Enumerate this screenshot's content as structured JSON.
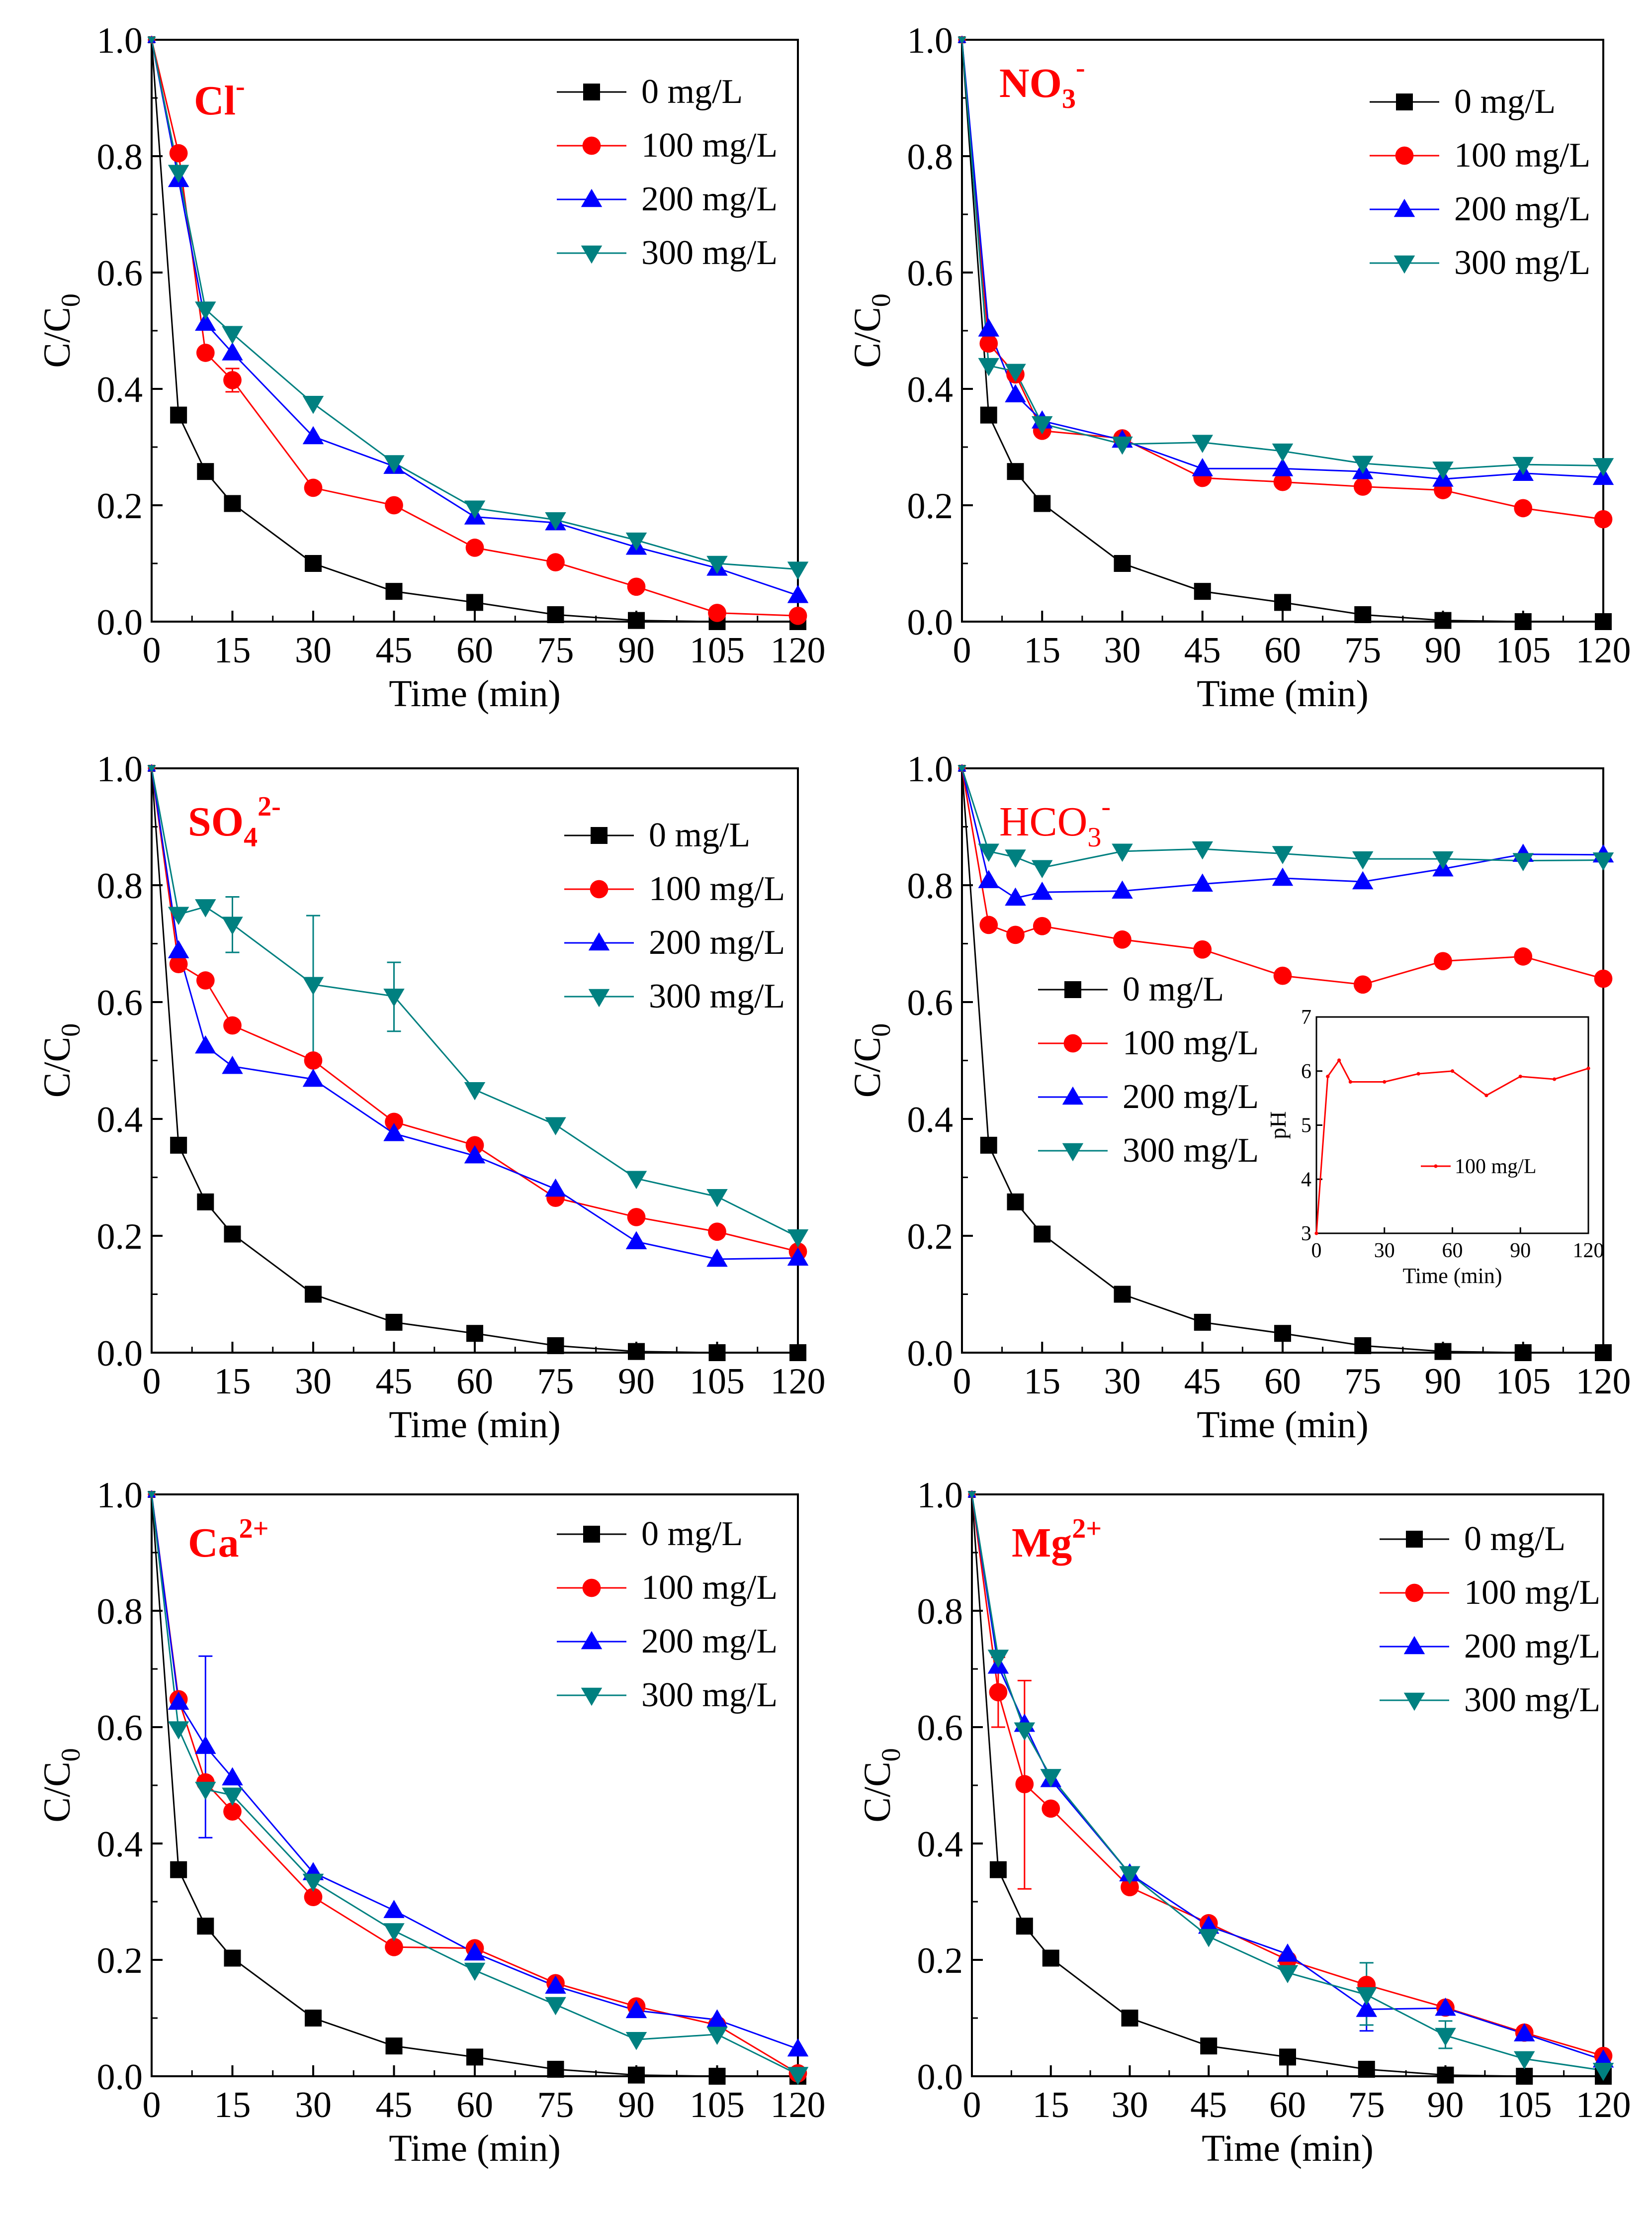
{
  "chart_data": [
    {
      "type": "line",
      "ion_label": {
        "base": "Cl",
        "sup": "-",
        "sub": "",
        "weight": "bold"
      },
      "xlabel": "Time (min)",
      "ylabel_base": "C/C",
      "ylabel_sub": "0",
      "xlim": [
        0,
        120
      ],
      "ylim": [
        0,
        1
      ],
      "xticks": [
        0,
        15,
        30,
        45,
        60,
        75,
        90,
        105,
        120
      ],
      "xtick_labels": [
        "0",
        "15",
        "30",
        "45",
        "60",
        "75",
        "90",
        "105",
        "120"
      ],
      "yticks": [
        0,
        0.2,
        0.4,
        0.6,
        0.8,
        1.0
      ],
      "ytick_labels": [
        "0.0",
        "0.2",
        "0.4",
        "0.6",
        "0.8",
        "1.0"
      ],
      "legend_position": "top-right",
      "x": [
        0,
        5,
        10,
        15,
        30,
        45,
        60,
        75,
        90,
        105,
        120
      ],
      "series": [
        {
          "name": "0 mg/L",
          "marker": "square",
          "color": "#000000",
          "values": [
            1.0,
            0.355,
            0.258,
            0.203,
            0.1,
            0.052,
            0.033,
            0.012,
            0.002,
            0.0,
            0.0
          ]
        },
        {
          "name": "100 mg/L",
          "marker": "circle",
          "color": "#ff0000",
          "values": [
            1.0,
            0.805,
            0.462,
            0.415,
            0.23,
            0.2,
            0.127,
            0.102,
            0.06,
            0.015,
            0.01
          ]
        },
        {
          "name": "200 mg/L",
          "marker": "triangle-up",
          "color": "#0000ff",
          "values": [
            1.0,
            0.76,
            0.513,
            0.462,
            0.318,
            0.267,
            0.18,
            0.17,
            0.128,
            0.092,
            0.045
          ]
        },
        {
          "name": "300 mg/L",
          "marker": "triangle-down",
          "color": "#008080",
          "values": [
            1.0,
            0.772,
            0.537,
            0.495,
            0.375,
            0.273,
            0.195,
            0.175,
            0.14,
            0.1,
            0.09
          ]
        }
      ],
      "error_bars": [
        {
          "series": 1,
          "x": 15,
          "low": 0.395,
          "high": 0.435
        }
      ]
    },
    {
      "type": "line",
      "ion_label": {
        "base": "NO",
        "sub": "3",
        "sup": "-",
        "weight": "bold"
      },
      "xlabel": "Time (min)",
      "ylabel_base": "C/C",
      "ylabel_sub": "0",
      "xlim": [
        0,
        120
      ],
      "ylim": [
        0,
        1
      ],
      "xticks": [
        0,
        15,
        30,
        45,
        60,
        75,
        90,
        105,
        120
      ],
      "xtick_labels": [
        "0",
        "15",
        "30",
        "45",
        "60",
        "75",
        "90",
        "105",
        "120"
      ],
      "yticks": [
        0,
        0.2,
        0.4,
        0.6,
        0.8,
        1.0
      ],
      "ytick_labels": [
        "0.0",
        "0.2",
        "0.4",
        "0.6",
        "0.8",
        "1.0"
      ],
      "legend_position": "top-right",
      "x": [
        0,
        5,
        10,
        15,
        30,
        45,
        60,
        75,
        90,
        105,
        120
      ],
      "series": [
        {
          "name": "0 mg/L",
          "marker": "square",
          "color": "#000000",
          "values": [
            1.0,
            0.355,
            0.258,
            0.203,
            0.1,
            0.052,
            0.033,
            0.012,
            0.002,
            0.0,
            0.0
          ]
        },
        {
          "name": "100 mg/L",
          "marker": "circle",
          "color": "#ff0000",
          "values": [
            1.0,
            0.478,
            0.425,
            0.328,
            0.315,
            0.247,
            0.24,
            0.232,
            0.226,
            0.195,
            0.176
          ]
        },
        {
          "name": "200 mg/L",
          "marker": "triangle-up",
          "color": "#0000ff",
          "values": [
            1.0,
            0.503,
            0.39,
            0.345,
            0.312,
            0.263,
            0.263,
            0.258,
            0.245,
            0.255,
            0.248
          ]
        },
        {
          "name": "300 mg/L",
          "marker": "triangle-down",
          "color": "#008080",
          "values": [
            1.0,
            0.44,
            0.43,
            0.34,
            0.305,
            0.308,
            0.293,
            0.272,
            0.262,
            0.27,
            0.268
          ]
        }
      ],
      "error_bars": []
    },
    {
      "type": "line",
      "ion_label": {
        "base": "SO",
        "sub": "4",
        "sup": "2-",
        "weight": "bold"
      },
      "xlabel": "Time (min)",
      "ylabel_base": "C/C",
      "ylabel_sub": "0",
      "xlim": [
        0,
        120
      ],
      "ylim": [
        0,
        1
      ],
      "xticks": [
        0,
        15,
        30,
        45,
        60,
        75,
        90,
        105,
        120
      ],
      "xtick_labels": [
        "0",
        "15",
        "30",
        "45",
        "60",
        "75",
        "90",
        "105",
        "120"
      ],
      "yticks": [
        0,
        0.2,
        0.4,
        0.6,
        0.8,
        1.0
      ],
      "ytick_labels": [
        "0.0",
        "0.2",
        "0.4",
        "0.6",
        "0.8",
        "1.0"
      ],
      "legend_position": "top-right",
      "x": [
        0,
        5,
        10,
        15,
        30,
        45,
        60,
        75,
        90,
        105,
        120
      ],
      "series": [
        {
          "name": "0 mg/L",
          "marker": "square",
          "color": "#000000",
          "values": [
            1.0,
            0.355,
            0.258,
            0.203,
            0.1,
            0.052,
            0.033,
            0.012,
            0.002,
            0.0,
            0.0
          ]
        },
        {
          "name": "100 mg/L",
          "marker": "circle",
          "color": "#ff0000",
          "values": [
            1.0,
            0.665,
            0.637,
            0.56,
            0.5,
            0.395,
            0.355,
            0.265,
            0.232,
            0.207,
            0.173
          ]
        },
        {
          "name": "200 mg/L",
          "marker": "triangle-up",
          "color": "#0000ff",
          "values": [
            1.0,
            0.688,
            0.525,
            0.49,
            0.468,
            0.375,
            0.337,
            0.28,
            0.19,
            0.16,
            0.162
          ]
        },
        {
          "name": "300 mg/L",
          "marker": "triangle-down",
          "color": "#008080",
          "values": [
            1.0,
            0.75,
            0.763,
            0.733,
            0.63,
            0.61,
            0.45,
            0.39,
            0.298,
            0.267,
            0.198
          ]
        }
      ],
      "error_bars": [
        {
          "series": 3,
          "x": 15,
          "low": 0.685,
          "high": 0.78
        },
        {
          "series": 3,
          "x": 30,
          "low": 0.51,
          "high": 0.748
        },
        {
          "series": 3,
          "x": 45,
          "low": 0.55,
          "high": 0.668
        }
      ]
    },
    {
      "type": "line",
      "ion_label": {
        "base": "HCO",
        "sub": "3",
        "sup": "-",
        "weight": "normal"
      },
      "xlabel": "Time (min)",
      "ylabel_base": "C/C",
      "ylabel_sub": "0",
      "xlim": [
        0,
        120
      ],
      "ylim": [
        0,
        1
      ],
      "xticks": [
        0,
        15,
        30,
        45,
        60,
        75,
        90,
        105,
        120
      ],
      "xtick_labels": [
        "0",
        "15",
        "30",
        "45",
        "60",
        "75",
        "90",
        "105",
        "120"
      ],
      "yticks": [
        0,
        0.2,
        0.4,
        0.6,
        0.8,
        1.0
      ],
      "ytick_labels": [
        "0.0",
        "0.2",
        "0.4",
        "0.6",
        "0.8",
        "1.0"
      ],
      "legend_position": "center-left",
      "x": [
        0,
        5,
        10,
        15,
        30,
        45,
        60,
        75,
        90,
        105,
        120
      ],
      "series": [
        {
          "name": "0 mg/L",
          "marker": "square",
          "color": "#000000",
          "values": [
            1.0,
            0.355,
            0.258,
            0.203,
            0.1,
            0.052,
            0.033,
            0.012,
            0.002,
            0.0,
            0.0
          ]
        },
        {
          "name": "100 mg/L",
          "marker": "circle",
          "color": "#ff0000",
          "values": [
            1.0,
            0.732,
            0.715,
            0.73,
            0.707,
            0.69,
            0.645,
            0.63,
            0.67,
            0.678,
            0.64
          ]
        },
        {
          "name": "200 mg/L",
          "marker": "triangle-up",
          "color": "#0000ff",
          "values": [
            1.0,
            0.808,
            0.778,
            0.788,
            0.79,
            0.802,
            0.812,
            0.806,
            0.828,
            0.853,
            0.852
          ]
        },
        {
          "name": "300 mg/L",
          "marker": "triangle-down",
          "color": "#008080",
          "values": [
            1.0,
            0.858,
            0.848,
            0.83,
            0.858,
            0.862,
            0.854,
            0.845,
            0.845,
            0.842,
            0.843
          ]
        }
      ],
      "error_bars": [],
      "inset": {
        "type": "line",
        "xlabel": "Time (min)",
        "ylabel": "pH",
        "xlim": [
          0,
          120
        ],
        "ylim": [
          3,
          7
        ],
        "xticks": [
          0,
          30,
          60,
          90,
          120
        ],
        "xtick_labels": [
          "0",
          "30",
          "60",
          "90",
          "120"
        ],
        "yticks": [
          3,
          4,
          5,
          6,
          7
        ],
        "ytick_labels": [
          "3",
          "4",
          "5",
          "6",
          "7"
        ],
        "x": [
          0,
          5,
          10,
          15,
          30,
          45,
          60,
          75,
          90,
          105,
          120
        ],
        "series": [
          {
            "name": "100 mg/L",
            "marker": "dot",
            "color": "#ff0000",
            "values": [
              3.0,
              5.9,
              6.2,
              5.8,
              5.8,
              5.95,
              6.0,
              5.55,
              5.9,
              5.85,
              6.05
            ]
          }
        ]
      }
    },
    {
      "type": "line",
      "ion_label": {
        "base": "Ca",
        "sub": "",
        "sup": "2+",
        "weight": "bold"
      },
      "xlabel": "Time (min)",
      "ylabel_base": "C/C",
      "ylabel_sub": "0",
      "xlim": [
        0,
        120
      ],
      "ylim": [
        0,
        1
      ],
      "xticks": [
        0,
        15,
        30,
        45,
        60,
        75,
        90,
        105,
        120
      ],
      "xtick_labels": [
        "0",
        "15",
        "30",
        "45",
        "60",
        "75",
        "90",
        "105",
        "120"
      ],
      "yticks": [
        0,
        0.2,
        0.4,
        0.6,
        0.8,
        1.0
      ],
      "ytick_labels": [
        "0.0",
        "0.2",
        "0.4",
        "0.6",
        "0.8",
        "1.0"
      ],
      "legend_position": "top-right",
      "x": [
        0,
        5,
        10,
        15,
        30,
        45,
        60,
        75,
        90,
        105,
        120
      ],
      "series": [
        {
          "name": "0 mg/L",
          "marker": "square",
          "color": "#000000",
          "values": [
            1.0,
            0.355,
            0.258,
            0.203,
            0.1,
            0.052,
            0.033,
            0.012,
            0.002,
            0.0,
            0.0
          ]
        },
        {
          "name": "100 mg/L",
          "marker": "circle",
          "color": "#ff0000",
          "values": [
            1.0,
            0.648,
            0.505,
            0.455,
            0.308,
            0.222,
            0.22,
            0.16,
            0.12,
            0.088,
            0.005
          ]
        },
        {
          "name": "200 mg/L",
          "marker": "triangle-up",
          "color": "#0000ff",
          "values": [
            1.0,
            0.643,
            0.567,
            0.513,
            0.35,
            0.285,
            0.212,
            0.155,
            0.113,
            0.097,
            0.047
          ]
        },
        {
          "name": "300 mg/L",
          "marker": "triangle-down",
          "color": "#008080",
          "values": [
            1.0,
            0.597,
            0.493,
            0.483,
            0.335,
            0.25,
            0.182,
            0.123,
            0.063,
            0.072,
            0.003
          ]
        }
      ],
      "error_bars": [
        {
          "series": 2,
          "x": 10,
          "low": 0.41,
          "high": 0.722
        }
      ]
    },
    {
      "type": "line",
      "ion_label": {
        "base": "Mg",
        "sub": "",
        "sup": "2+",
        "weight": "bold"
      },
      "xlabel": "Time (min)",
      "ylabel_base": "C/C",
      "ylabel_sub": "0",
      "xlim": [
        0,
        120
      ],
      "ylim": [
        0,
        1
      ],
      "xticks": [
        0,
        15,
        30,
        45,
        60,
        75,
        90,
        105,
        120
      ],
      "xtick_labels": [
        "0",
        "15",
        "30",
        "45",
        "60",
        "75",
        "90",
        "105",
        "120"
      ],
      "yticks": [
        0,
        0.2,
        0.4,
        0.6,
        0.8,
        1.0
      ],
      "ytick_labels": [
        "0.0",
        "0.2",
        "0.4",
        "0.6",
        "0.8",
        "1.0"
      ],
      "legend_position": "top-right",
      "x": [
        0,
        5,
        10,
        15,
        30,
        45,
        60,
        75,
        90,
        105,
        120
      ],
      "series": [
        {
          "name": "0 mg/L",
          "marker": "square",
          "color": "#000000",
          "values": [
            1.0,
            0.355,
            0.258,
            0.203,
            0.1,
            0.052,
            0.033,
            0.012,
            0.002,
            0.0,
            0.0
          ]
        },
        {
          "name": "100 mg/L",
          "marker": "circle",
          "color": "#ff0000",
          "values": [
            1.0,
            0.66,
            0.502,
            0.46,
            0.325,
            0.263,
            0.2,
            0.157,
            0.118,
            0.075,
            0.035
          ]
        },
        {
          "name": "200 mg/L",
          "marker": "triangle-up",
          "color": "#0000ff",
          "values": [
            1.0,
            0.705,
            0.605,
            0.51,
            0.348,
            0.258,
            0.21,
            0.115,
            0.117,
            0.073,
            0.028
          ]
        },
        {
          "name": "300 mg/L",
          "marker": "triangle-down",
          "color": "#008080",
          "values": [
            1.0,
            0.72,
            0.595,
            0.515,
            0.348,
            0.24,
            0.178,
            0.14,
            0.07,
            0.03,
            0.01
          ]
        }
      ],
      "error_bars": [
        {
          "series": 1,
          "x": 5,
          "low": 0.6,
          "high": 0.72
        },
        {
          "series": 1,
          "x": 10,
          "low": 0.322,
          "high": 0.68
        },
        {
          "series": 2,
          "x": 75,
          "low": 0.078,
          "high": 0.152
        },
        {
          "series": 3,
          "x": 75,
          "low": 0.088,
          "high": 0.195
        },
        {
          "series": 3,
          "x": 90,
          "low": 0.048,
          "high": 0.095
        }
      ]
    }
  ]
}
